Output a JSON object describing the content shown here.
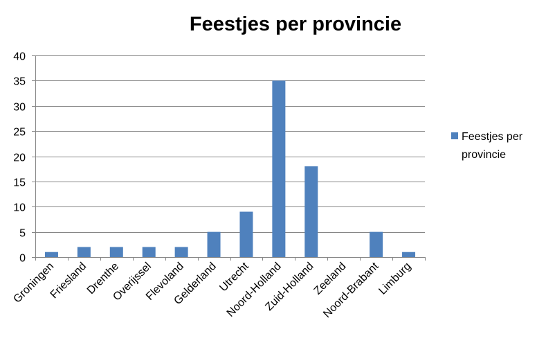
{
  "chart_data": {
    "type": "bar",
    "title": "Feestjes per provincie",
    "xlabel": "",
    "ylabel": "",
    "categories": [
      "Groningen",
      "Friesland",
      "Drenthe",
      "Overijssel",
      "Flevoland",
      "Gelderland",
      "Utrecht",
      "Noord-Holland",
      "Zuid-Holland",
      "Zeeland",
      "Noord-Brabant",
      "Limburg"
    ],
    "series": [
      {
        "name": "Feestjes per provincie",
        "values": [
          1,
          2,
          2,
          2,
          2,
          5,
          9,
          35,
          18,
          0,
          5,
          1
        ],
        "color": "#4f81bd"
      }
    ],
    "ylim": [
      0,
      40
    ],
    "yticks": [
      0,
      5,
      10,
      15,
      20,
      25,
      30,
      35,
      40
    ],
    "grid": true,
    "legend": "right",
    "legend_lines": [
      "Feestjes per",
      "provincie"
    ]
  }
}
